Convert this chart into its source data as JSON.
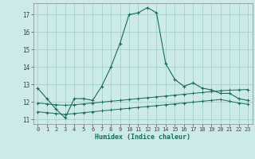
{
  "xlabel": "Humidex (Indice chaleur)",
  "bg_color": "#cceae8",
  "grid_color": "#aad4d0",
  "line_color": "#1a6b5a",
  "xlim": [
    -0.5,
    23.5
  ],
  "ylim": [
    10.75,
    17.65
  ],
  "xticks": [
    0,
    1,
    2,
    3,
    4,
    5,
    6,
    7,
    8,
    9,
    10,
    11,
    12,
    13,
    14,
    15,
    16,
    17,
    18,
    19,
    20,
    21,
    22,
    23
  ],
  "yticks": [
    11,
    12,
    13,
    14,
    15,
    16,
    17
  ],
  "main_x": [
    0,
    1,
    2,
    3,
    4,
    5,
    6,
    7,
    8,
    9,
    10,
    11,
    12,
    13,
    14,
    15,
    16,
    17,
    18,
    19,
    20,
    21,
    22,
    23
  ],
  "main_y": [
    12.8,
    12.2,
    11.6,
    11.1,
    12.2,
    12.2,
    12.1,
    12.9,
    14.0,
    15.35,
    17.0,
    17.1,
    17.4,
    17.1,
    14.2,
    13.3,
    12.9,
    13.1,
    12.8,
    12.7,
    12.5,
    12.5,
    12.2,
    12.1
  ],
  "line2_x": [
    0,
    1,
    2,
    3,
    4,
    5,
    6,
    7,
    8,
    9,
    10,
    11,
    12,
    13,
    14,
    15,
    16,
    17,
    18,
    19,
    20,
    21,
    22,
    23
  ],
  "line2_y": [
    11.95,
    11.9,
    11.85,
    11.82,
    11.85,
    11.9,
    11.95,
    12.0,
    12.05,
    12.1,
    12.15,
    12.2,
    12.25,
    12.3,
    12.35,
    12.4,
    12.45,
    12.5,
    12.55,
    12.6,
    12.65,
    12.68,
    12.7,
    12.72
  ],
  "line3_x": [
    0,
    1,
    2,
    3,
    4,
    5,
    6,
    7,
    8,
    9,
    10,
    11,
    12,
    13,
    14,
    15,
    16,
    17,
    18,
    19,
    20,
    21,
    22,
    23
  ],
  "line3_y": [
    11.45,
    11.4,
    11.35,
    11.3,
    11.35,
    11.4,
    11.45,
    11.5,
    11.55,
    11.6,
    11.65,
    11.7,
    11.75,
    11.8,
    11.85,
    11.9,
    11.95,
    12.0,
    12.05,
    12.1,
    12.15,
    12.05,
    11.95,
    11.88
  ]
}
